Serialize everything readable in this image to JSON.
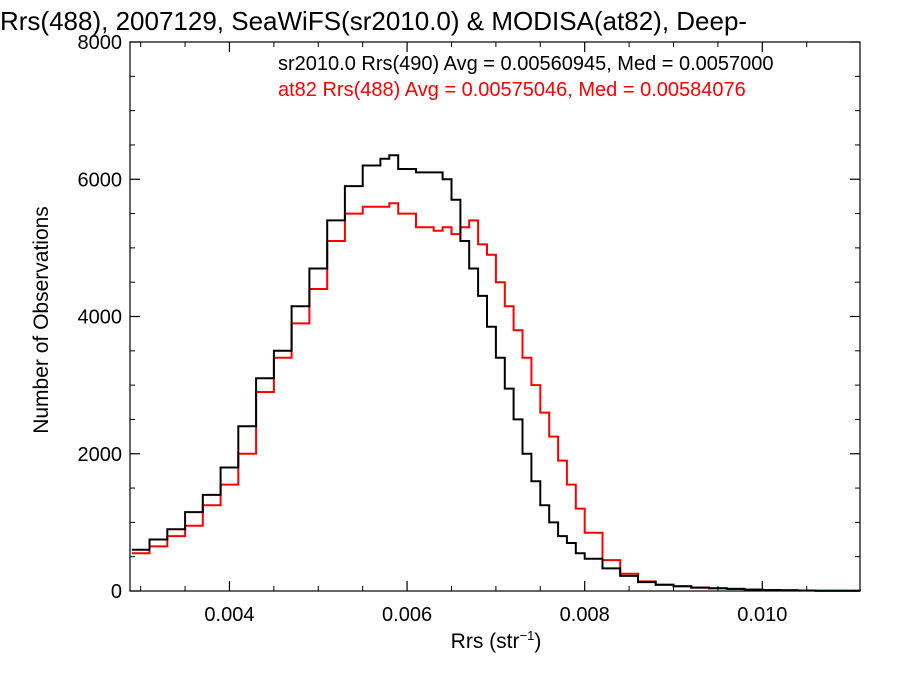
{
  "chart_data": {
    "type": "line",
    "title": "Rrs(488), 2007129, SeaWiFS(sr2010.0) & MODISA(at82), Deep-",
    "xlabel": "Rrs (str",
    "xlabel_sup": "−1",
    "xlabel_close": ")",
    "ylabel": "Number of Observations",
    "xlim": [
      0.00288,
      0.0111
    ],
    "ylim": [
      0,
      8000
    ],
    "xticks": [
      0.004,
      0.006,
      0.008,
      0.01
    ],
    "xtick_labels": [
      "0.004",
      "0.006",
      "0.008",
      "0.010"
    ],
    "yticks": [
      0,
      2000,
      4000,
      6000,
      8000
    ],
    "ytick_labels": [
      "0",
      "2000",
      "4000",
      "6000",
      "8000"
    ],
    "grid": false,
    "legend": "top-right",
    "series": [
      {
        "name": "sr2010.0 Rrs(490) Avg = 0.00560945, Med = 0.0057000",
        "color": "#000000",
        "x": [
          0.0029,
          0.0031,
          0.0033,
          0.0035,
          0.0037,
          0.0039,
          0.0041,
          0.0043,
          0.0045,
          0.0047,
          0.0049,
          0.0051,
          0.0053,
          0.0055,
          0.0057,
          0.0058,
          0.0059,
          0.0061,
          0.0063,
          0.0064,
          0.0065,
          0.0066,
          0.0067,
          0.0068,
          0.0069,
          0.007,
          0.0071,
          0.0072,
          0.0073,
          0.0074,
          0.0075,
          0.0076,
          0.0077,
          0.0078,
          0.0079,
          0.008,
          0.0082,
          0.0084,
          0.0086,
          0.0088,
          0.009,
          0.0092,
          0.0094,
          0.0096,
          0.0098,
          0.01,
          0.0102,
          0.0104,
          0.0106,
          0.0108,
          0.0111
        ],
        "y": [
          600,
          750,
          900,
          1150,
          1400,
          1800,
          2400,
          3100,
          3500,
          4150,
          4700,
          5400,
          5900,
          6200,
          6300,
          6350,
          6150,
          6100,
          6100,
          6000,
          5700,
          5100,
          4700,
          4300,
          3850,
          3400,
          2950,
          2500,
          2000,
          1600,
          1250,
          1000,
          800,
          700,
          550,
          470,
          330,
          220,
          130,
          90,
          70,
          50,
          40,
          30,
          20,
          15,
          10,
          8,
          5,
          3,
          2
        ]
      },
      {
        "name": "at82 Rrs(488) Avg = 0.00575046, Med = 0.00584076",
        "color": "#ff0000",
        "x": [
          0.0029,
          0.0031,
          0.0033,
          0.0035,
          0.0037,
          0.0039,
          0.0041,
          0.0043,
          0.0045,
          0.0047,
          0.0049,
          0.0051,
          0.0053,
          0.0055,
          0.0057,
          0.0058,
          0.0059,
          0.0061,
          0.0063,
          0.0064,
          0.0065,
          0.0066,
          0.0067,
          0.0068,
          0.0069,
          0.007,
          0.0071,
          0.0072,
          0.0073,
          0.0074,
          0.0075,
          0.0076,
          0.0077,
          0.0078,
          0.0079,
          0.008,
          0.0082,
          0.0084,
          0.0086,
          0.0088,
          0.009,
          0.0092,
          0.0094,
          0.0096,
          0.0098,
          0.01,
          0.0102,
          0.0104,
          0.0106,
          0.0108,
          0.0111
        ],
        "y": [
          550,
          650,
          800,
          950,
          1250,
          1550,
          2000,
          2900,
          3400,
          3900,
          4400,
          5100,
          5500,
          5600,
          5600,
          5650,
          5500,
          5300,
          5250,
          5300,
          5200,
          5300,
          5400,
          5050,
          4900,
          4500,
          4150,
          3800,
          3400,
          3000,
          2600,
          2250,
          1900,
          1550,
          1200,
          850,
          450,
          250,
          140,
          90,
          70,
          50,
          40,
          30,
          20,
          15,
          10,
          8,
          5,
          3,
          2
        ]
      }
    ]
  }
}
